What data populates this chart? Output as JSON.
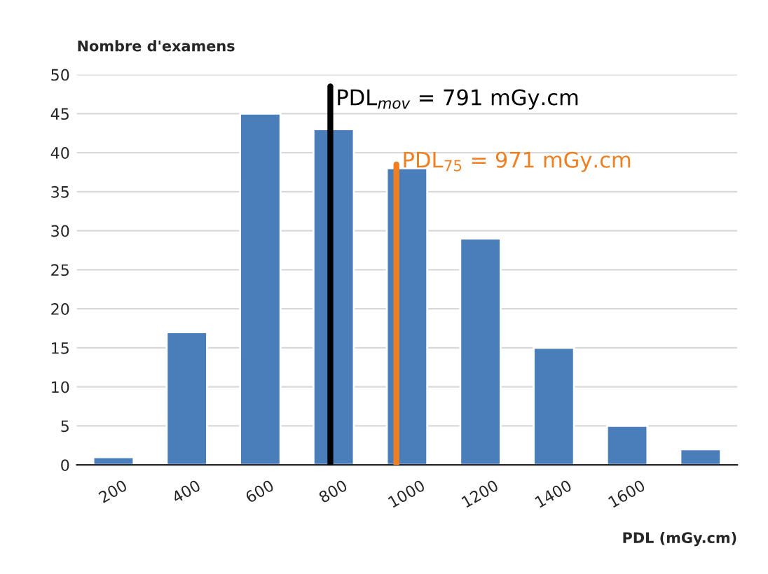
{
  "chart_data": {
    "type": "histogram",
    "ylabel": "Nombre d'examens",
    "xlabel": "PDL (mGy.cm)",
    "bins": [
      100,
      300,
      500,
      700,
      900,
      1100,
      1300,
      1500,
      1700,
      1900
    ],
    "values": [
      1,
      17,
      45,
      43,
      38,
      29,
      15,
      5,
      2
    ],
    "color": "#4a7ebb",
    "xlim": [
      100,
      1900
    ],
    "xticks": [
      200,
      400,
      600,
      800,
      1000,
      1200,
      1400,
      1600
    ],
    "ylim": [
      0,
      50
    ],
    "yticks": [
      0,
      5,
      10,
      15,
      20,
      25,
      30,
      35,
      40,
      45,
      50
    ],
    "grid": "y",
    "ref_lines": [
      {
        "axis": "x",
        "value": 791,
        "label": "PDL$_{mov}$ = 791 mGy.cm",
        "color": "#000000"
      },
      {
        "axis": "x",
        "value": 971,
        "label": "PDL$_{75}$ = 971 mGy.cm",
        "color": "#f07f21"
      }
    ]
  }
}
